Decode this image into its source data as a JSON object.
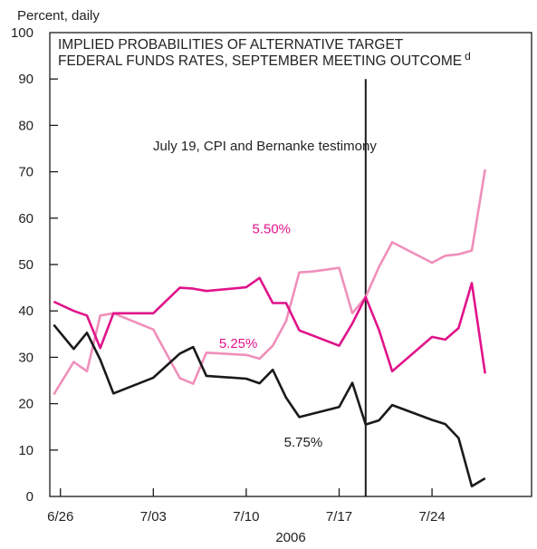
{
  "chart_data": {
    "type": "line",
    "title_lines": [
      "IMPLIED PROBABILITIES OF ALTERNATIVE TARGET",
      "FEDERAL FUNDS RATES, SEPTEMBER MEETING OUTCOME"
    ],
    "title_superscript": "d",
    "ylabel": "Percent, daily",
    "xlabel": "2006",
    "ylim": [
      0,
      100
    ],
    "yticks": [
      0,
      10,
      20,
      30,
      40,
      50,
      60,
      70,
      80,
      90,
      100
    ],
    "xlim": [
      -0.8,
      35.5
    ],
    "xticks": [
      {
        "x": 0,
        "label": "6/26"
      },
      {
        "x": 7,
        "label": "7/03"
      },
      {
        "x": 14,
        "label": "7/10"
      },
      {
        "x": 21,
        "label": "7/17"
      },
      {
        "x": 28,
        "label": "7/24"
      }
    ],
    "event": {
      "x": 23,
      "label": "July 19, CPI and Bernanke testimony"
    },
    "series": [
      {
        "name": "5.25%",
        "color": "#f08fbb",
        "x": [
          -0.5,
          1,
          2,
          3,
          4,
          7,
          9,
          10,
          11,
          14,
          15,
          16,
          17,
          18,
          19,
          21,
          22,
          23,
          24,
          25,
          28,
          29,
          30,
          31,
          32
        ],
        "y": [
          22,
          29,
          27,
          39,
          39.5,
          36,
          25.5,
          24.3,
          31,
          30.5,
          29.7,
          32.5,
          37.8,
          48.3,
          48.5,
          49.3,
          39.5,
          43,
          49.5,
          54.8,
          50.4,
          51.9,
          52.2,
          53,
          70.5
        ]
      },
      {
        "name": "5.50%",
        "color": "#e0138a",
        "x": [
          -0.5,
          1,
          2,
          3,
          4,
          7,
          9,
          10,
          11,
          14,
          15,
          16,
          17,
          18,
          21,
          22,
          23,
          24,
          25,
          28,
          29,
          30,
          31,
          32
        ],
        "y": [
          42,
          40,
          39,
          32,
          39.5,
          39.5,
          45,
          44.8,
          44.3,
          45.1,
          47.1,
          41.7,
          41.7,
          35.8,
          32.5,
          37.3,
          43,
          35.9,
          27,
          34.4,
          33.8,
          36.3,
          46,
          26.5
        ]
      },
      {
        "name": "5.75%",
        "color": "#1a1a1a",
        "x": [
          -0.5,
          1,
          2,
          3,
          4,
          7,
          9,
          10,
          11,
          14,
          15,
          16,
          17,
          18,
          21,
          22,
          23,
          24,
          25,
          28,
          29,
          30,
          31,
          32
        ],
        "y": [
          37,
          31.8,
          35.3,
          29.5,
          22.2,
          25.6,
          30.8,
          32.2,
          26,
          25.4,
          24.4,
          27.3,
          21.3,
          17.1,
          19.3,
          24.5,
          15.5,
          16.4,
          19.7,
          16.5,
          15.6,
          12.6,
          2.2,
          3.9
        ]
      }
    ],
    "series_labels": [
      {
        "text": "5.50%",
        "color": "#e0138a",
        "x": 15.9,
        "y": 57.7
      },
      {
        "text": "5.25%",
        "color": "#e0138a",
        "x": 13.4,
        "y": 33
      },
      {
        "text": "5.75%",
        "color": "#1a1a1a",
        "x": 18.3,
        "y": 11.7
      }
    ]
  }
}
